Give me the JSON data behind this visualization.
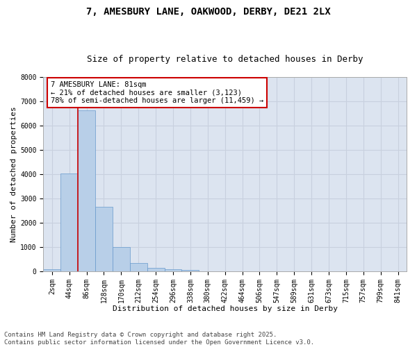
{
  "title_line1": "7, AMESBURY LANE, OAKWOOD, DERBY, DE21 2LX",
  "title_line2": "Size of property relative to detached houses in Derby",
  "xlabel": "Distribution of detached houses by size in Derby",
  "ylabel": "Number of detached properties",
  "categories": [
    "2sqm",
    "44sqm",
    "86sqm",
    "128sqm",
    "170sqm",
    "212sqm",
    "254sqm",
    "296sqm",
    "338sqm",
    "380sqm",
    "422sqm",
    "464sqm",
    "506sqm",
    "547sqm",
    "589sqm",
    "631sqm",
    "673sqm",
    "715sqm",
    "757sqm",
    "799sqm",
    "841sqm"
  ],
  "values": [
    70,
    4030,
    6620,
    2650,
    1010,
    330,
    130,
    90,
    55,
    0,
    0,
    0,
    0,
    0,
    0,
    0,
    0,
    0,
    0,
    0,
    0
  ],
  "bar_color": "#b8cfe8",
  "bar_edge_color": "#6699cc",
  "vline_color": "#cc0000",
  "vline_x": 1.5,
  "annotation_box_text": "7 AMESBURY LANE: 81sqm\n← 21% of detached houses are smaller (3,123)\n78% of semi-detached houses are larger (11,459) →",
  "annotation_box_color": "#cc0000",
  "annotation_box_bg": "#ffffff",
  "ylim": [
    0,
    8000
  ],
  "yticks": [
    0,
    1000,
    2000,
    3000,
    4000,
    5000,
    6000,
    7000,
    8000
  ],
  "grid_color": "#c8d0de",
  "background_color": "#dce4f0",
  "footnote": "Contains HM Land Registry data © Crown copyright and database right 2025.\nContains public sector information licensed under the Open Government Licence v3.0.",
  "title_fontsize": 10,
  "subtitle_fontsize": 9,
  "axis_label_fontsize": 8,
  "tick_fontsize": 7,
  "annotation_fontsize": 7.5,
  "footnote_fontsize": 6.5
}
